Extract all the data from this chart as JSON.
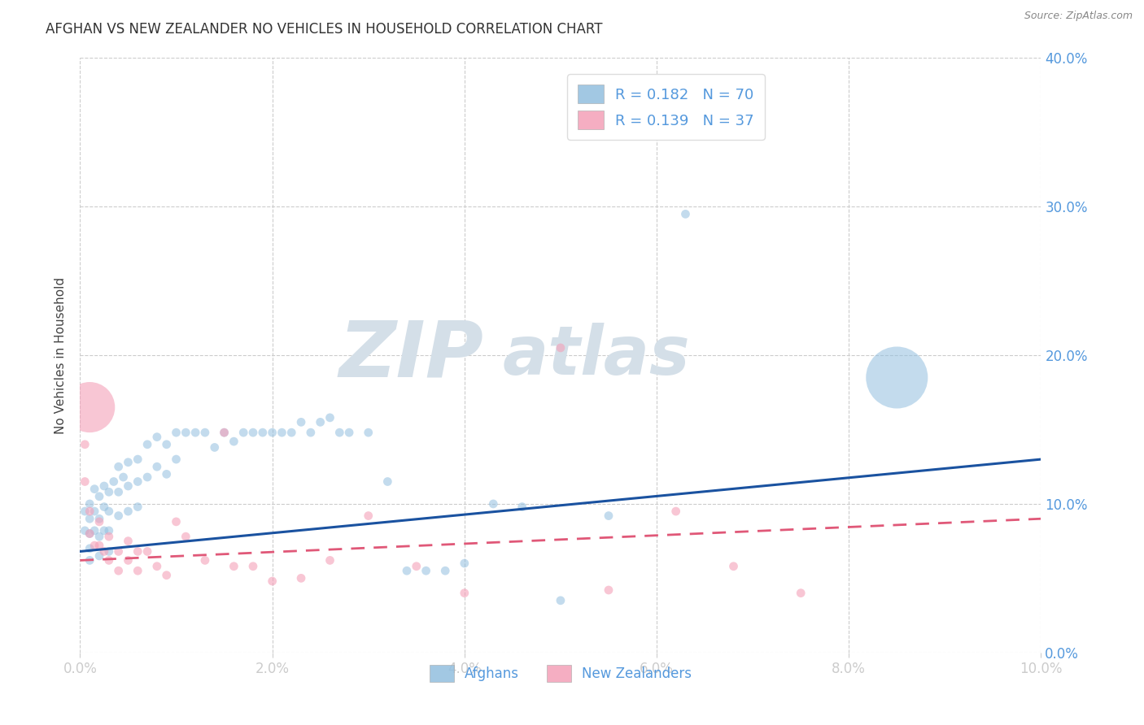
{
  "title": "AFGHAN VS NEW ZEALANDER NO VEHICLES IN HOUSEHOLD CORRELATION CHART",
  "source": "Source: ZipAtlas.com",
  "ylabel_left": "No Vehicles in Household",
  "xlim": [
    0.0,
    0.1
  ],
  "ylim": [
    0.0,
    0.4
  ],
  "xticks": [
    0.0,
    0.02,
    0.04,
    0.06,
    0.08,
    0.1
  ],
  "yticks": [
    0.0,
    0.1,
    0.2,
    0.3,
    0.4
  ],
  "ytick_labels_right": [
    "0.0%",
    "10.0%",
    "20.0%",
    "30.0%",
    "40.0%"
  ],
  "xtick_labels": [
    "0.0%",
    "2.0%",
    "4.0%",
    "6.0%",
    "8.0%",
    "10.0%"
  ],
  "watermark_zip": "ZIP",
  "watermark_atlas": "atlas",
  "afghan_color": "#92bfdf",
  "nz_color": "#f4a0b8",
  "afghan_trend_color": "#1a52a0",
  "nz_trend_color": "#e05878",
  "afghan_intercept": 0.068,
  "afghan_slope": 0.62,
  "nz_intercept": 0.062,
  "nz_slope": 0.28,
  "legend_r1": "R = 0.182   N = 70",
  "legend_r2": "R = 0.139   N = 37",
  "legend_afghans": "Afghans",
  "legend_nz": "New Zealanders",
  "background_color": "#ffffff",
  "grid_color": "#cccccc",
  "title_fontsize": 12,
  "axis_label_fontsize": 11,
  "tick_label_color": "#5599dd",
  "legend_fontsize": 13,
  "watermark_color": "#d4dfe8",
  "watermark_fontsize_zip": 70,
  "watermark_fontsize_atlas": 60,
  "afghan_points_x": [
    0.0005,
    0.0005,
    0.001,
    0.001,
    0.001,
    0.001,
    0.001,
    0.0015,
    0.0015,
    0.0015,
    0.002,
    0.002,
    0.002,
    0.002,
    0.0025,
    0.0025,
    0.0025,
    0.003,
    0.003,
    0.003,
    0.003,
    0.0035,
    0.004,
    0.004,
    0.004,
    0.0045,
    0.005,
    0.005,
    0.005,
    0.006,
    0.006,
    0.006,
    0.007,
    0.007,
    0.008,
    0.008,
    0.009,
    0.009,
    0.01,
    0.01,
    0.011,
    0.012,
    0.013,
    0.014,
    0.015,
    0.016,
    0.017,
    0.018,
    0.019,
    0.02,
    0.021,
    0.022,
    0.023,
    0.024,
    0.025,
    0.026,
    0.027,
    0.028,
    0.03,
    0.032,
    0.034,
    0.036,
    0.038,
    0.04,
    0.043,
    0.046,
    0.05,
    0.055,
    0.063,
    0.085
  ],
  "afghan_points_y": [
    0.095,
    0.082,
    0.1,
    0.09,
    0.08,
    0.07,
    0.062,
    0.11,
    0.095,
    0.082,
    0.105,
    0.09,
    0.078,
    0.065,
    0.112,
    0.098,
    0.082,
    0.108,
    0.095,
    0.082,
    0.068,
    0.115,
    0.125,
    0.108,
    0.092,
    0.118,
    0.128,
    0.112,
    0.095,
    0.13,
    0.115,
    0.098,
    0.14,
    0.118,
    0.145,
    0.125,
    0.14,
    0.12,
    0.148,
    0.13,
    0.148,
    0.148,
    0.148,
    0.138,
    0.148,
    0.142,
    0.148,
    0.148,
    0.148,
    0.148,
    0.148,
    0.148,
    0.155,
    0.148,
    0.155,
    0.158,
    0.148,
    0.148,
    0.148,
    0.115,
    0.055,
    0.055,
    0.055,
    0.06,
    0.1,
    0.098,
    0.035,
    0.092,
    0.295,
    0.185
  ],
  "afghan_sizes": [
    60,
    60,
    60,
    60,
    60,
    60,
    60,
    60,
    60,
    60,
    60,
    60,
    60,
    60,
    60,
    60,
    60,
    60,
    60,
    60,
    60,
    60,
    60,
    60,
    60,
    60,
    60,
    60,
    60,
    60,
    60,
    60,
    60,
    60,
    60,
    60,
    60,
    60,
    60,
    60,
    60,
    60,
    60,
    60,
    60,
    60,
    60,
    60,
    60,
    60,
    60,
    60,
    60,
    60,
    60,
    60,
    60,
    60,
    60,
    60,
    60,
    60,
    60,
    60,
    60,
    60,
    60,
    60,
    60,
    3000
  ],
  "nz_points_x": [
    0.0005,
    0.0005,
    0.001,
    0.001,
    0.0015,
    0.002,
    0.002,
    0.0025,
    0.003,
    0.003,
    0.004,
    0.004,
    0.005,
    0.005,
    0.006,
    0.006,
    0.007,
    0.008,
    0.009,
    0.01,
    0.011,
    0.013,
    0.015,
    0.016,
    0.018,
    0.02,
    0.023,
    0.026,
    0.03,
    0.035,
    0.04,
    0.05,
    0.055,
    0.062,
    0.068,
    0.075,
    0.001
  ],
  "nz_points_y": [
    0.14,
    0.115,
    0.095,
    0.08,
    0.072,
    0.088,
    0.072,
    0.068,
    0.078,
    0.062,
    0.068,
    0.055,
    0.075,
    0.062,
    0.068,
    0.055,
    0.068,
    0.058,
    0.052,
    0.088,
    0.078,
    0.062,
    0.148,
    0.058,
    0.058,
    0.048,
    0.05,
    0.062,
    0.092,
    0.058,
    0.04,
    0.205,
    0.042,
    0.095,
    0.058,
    0.04,
    0.165
  ],
  "nz_sizes": [
    60,
    60,
    60,
    60,
    60,
    60,
    60,
    60,
    60,
    60,
    60,
    60,
    60,
    60,
    60,
    60,
    60,
    60,
    60,
    60,
    60,
    60,
    60,
    60,
    60,
    60,
    60,
    60,
    60,
    60,
    60,
    60,
    60,
    60,
    60,
    60,
    2000
  ]
}
